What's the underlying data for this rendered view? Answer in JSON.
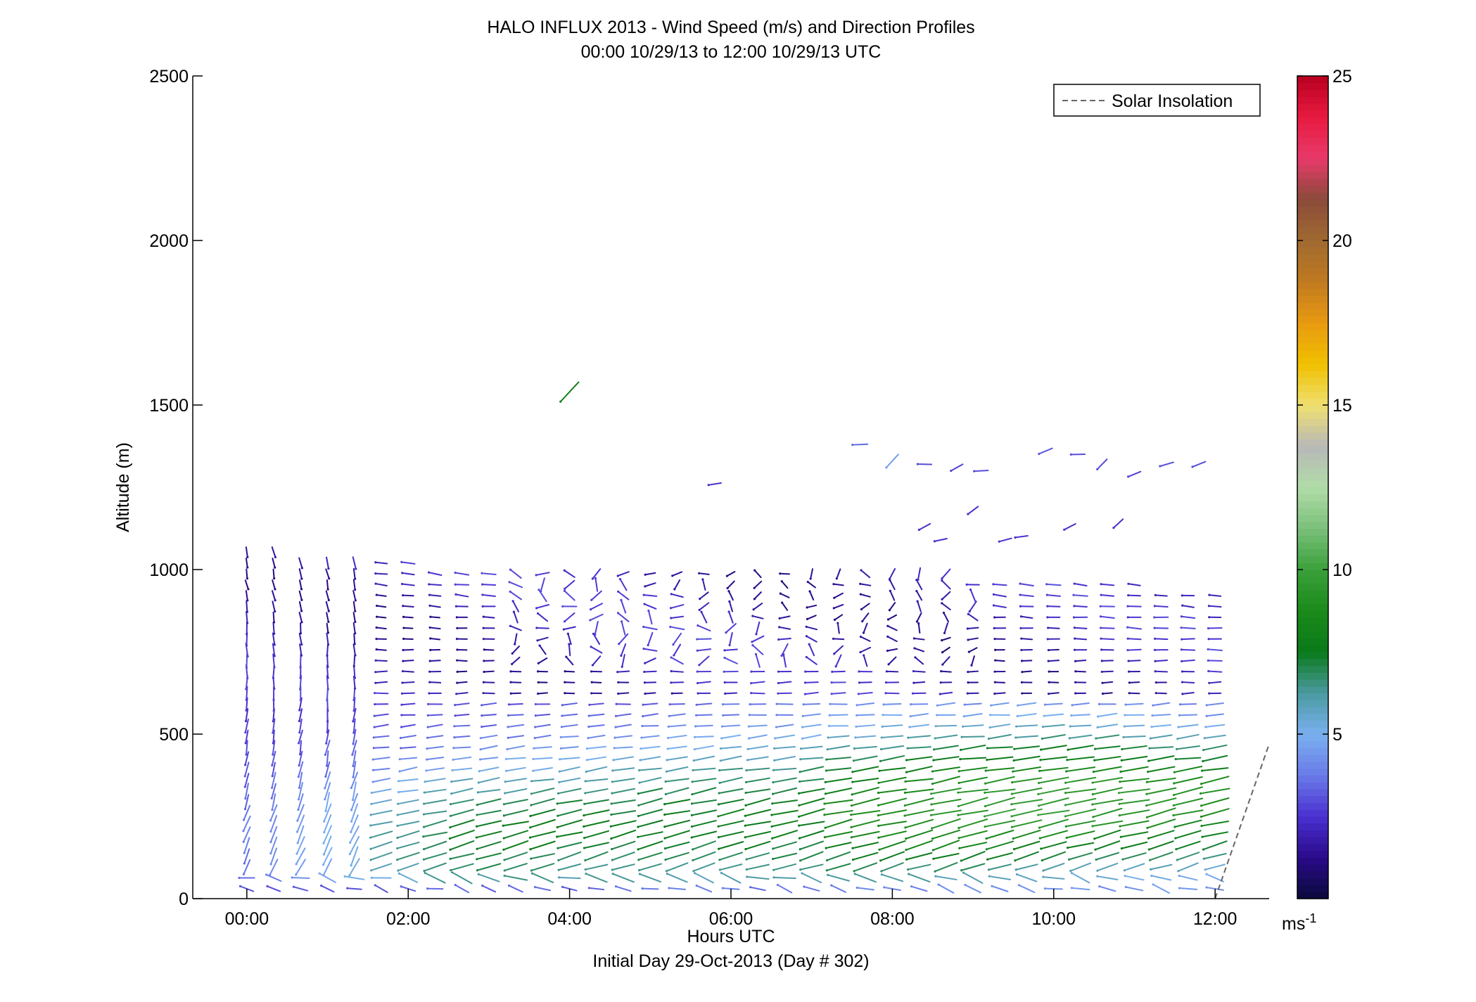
{
  "chart_data": {
    "type": "vector-field",
    "title": "HALO INFLUX 2013 - Wind Speed (m/s) and Direction Profiles",
    "subtitle": "00:00 10/29/13 to 12:00 10/29/13  UTC",
    "xlabel": "Hours UTC",
    "xlabel_sub": "Initial Day 29-Oct-2013 (Day # 302)",
    "ylabel": "Altitude (m)",
    "xlim": [
      -0.67,
      12.67
    ],
    "ylim": [
      0,
      2500
    ],
    "x_ticks": [
      0,
      2,
      4,
      6,
      8,
      10,
      12
    ],
    "x_tick_labels": [
      "00:00",
      "02:00",
      "04:00",
      "06:00",
      "08:00",
      "10:00",
      "12:00"
    ],
    "y_ticks": [
      0,
      500,
      1000,
      1500,
      2000,
      2500
    ],
    "y_tick_labels": [
      "0",
      "500",
      "1000",
      "1500",
      "2000",
      "2500"
    ],
    "legend": {
      "label": "Solar Insolation",
      "placement": "top-right",
      "line_style": "dashed",
      "color": "#666666"
    },
    "solar_insolation": {
      "x": [
        12.0,
        12.67
      ],
      "y": [
        0,
        470
      ]
    },
    "colorbar": {
      "range": [
        0,
        25
      ],
      "ticks": [
        5,
        10,
        15,
        20,
        25
      ],
      "tick_labels": [
        "5",
        "10",
        "15",
        "20",
        "25"
      ],
      "unit_label": "ms",
      "unit_exponent": "-1",
      "colors": [
        "#0a0a3a",
        "#2a0a8a",
        "#4a30d0",
        "#6a7ae8",
        "#7ab0f0",
        "#4a9aa0",
        "#0a7a1a",
        "#1a8a1a",
        "#3aa03a",
        "#7ac07a",
        "#b0dca8",
        "#b8b8b8",
        "#f0e070",
        "#f0c000",
        "#e89a10",
        "#c07a20",
        "#a06a30",
        "#8a4a3a",
        "#e83a6a",
        "#e81a40",
        "#b80020"
      ]
    },
    "vector_field": {
      "time_start": 0,
      "time_step": 0.3333,
      "time_count": 37,
      "alt_step": 33,
      "upper_vectors": [
        {
          "t": 4.0,
          "z": 1540,
          "speed": 8.0
        },
        {
          "t": 5.8,
          "z": 1260,
          "speed": 2.5
        },
        {
          "t": 7.6,
          "z": 1380,
          "speed": 3.5
        },
        {
          "t": 8.0,
          "z": 1330,
          "speed": 4.5
        },
        {
          "t": 8.4,
          "z": 1320,
          "speed": 3.0
        },
        {
          "t": 8.8,
          "z": 1310,
          "speed": 2.8
        },
        {
          "t": 9.1,
          "z": 1300,
          "speed": 3.0
        },
        {
          "t": 9.9,
          "z": 1360,
          "speed": 3.2
        },
        {
          "t": 10.3,
          "z": 1350,
          "speed": 3.0
        },
        {
          "t": 10.6,
          "z": 1320,
          "speed": 3.0
        },
        {
          "t": 11.0,
          "z": 1290,
          "speed": 2.8
        },
        {
          "t": 11.4,
          "z": 1320,
          "speed": 3.0
        },
        {
          "t": 11.8,
          "z": 1320,
          "speed": 3.0
        },
        {
          "t": 8.4,
          "z": 1130,
          "speed": 2.5
        },
        {
          "t": 9.0,
          "z": 1180,
          "speed": 2.5
        },
        {
          "t": 9.6,
          "z": 1100,
          "speed": 2.5
        },
        {
          "t": 10.2,
          "z": 1130,
          "speed": 2.5
        },
        {
          "t": 10.8,
          "z": 1140,
          "speed": 2.5
        },
        {
          "t": 8.6,
          "z": 1090,
          "speed": 2.5
        },
        {
          "t": 9.4,
          "z": 1090,
          "speed": 2.5
        }
      ]
    }
  }
}
